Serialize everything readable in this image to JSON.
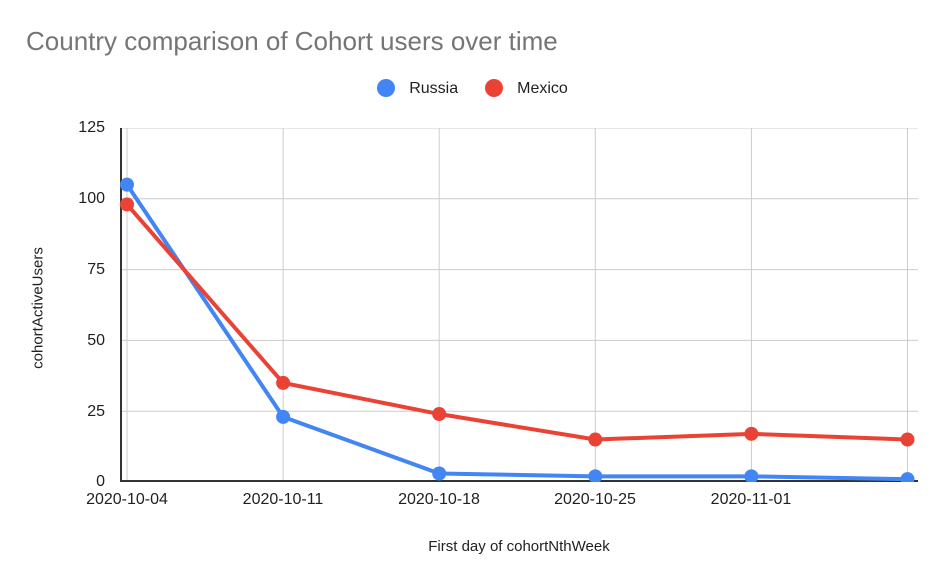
{
  "chart_data": {
    "type": "line",
    "title": "Country comparison of Cohort users over time",
    "xlabel": "First day of cohortNthWeek",
    "ylabel": "cohortActiveUsers",
    "x_tick_labels": [
      "2020-10-04",
      "2020-10-11",
      "2020-10-18",
      "2020-10-25",
      "2020-11-01"
    ],
    "num_points": 6,
    "series": [
      {
        "name": "Russia",
        "color": "#4285F4",
        "values": [
          105,
          23,
          3,
          2,
          2,
          1
        ]
      },
      {
        "name": "Mexico",
        "color": "#EA4335",
        "values": [
          98,
          35,
          24,
          15,
          17,
          15
        ]
      }
    ],
    "ylim": [
      0,
      125
    ],
    "yticks": [
      0,
      25,
      50,
      75,
      100,
      125
    ],
    "grid": true,
    "legend_position": "top-center",
    "colors": {
      "grid_line": "#cccccc",
      "axis_line": "#333333",
      "title_text": "#757575",
      "tick_text": "#1f1f1f"
    }
  }
}
